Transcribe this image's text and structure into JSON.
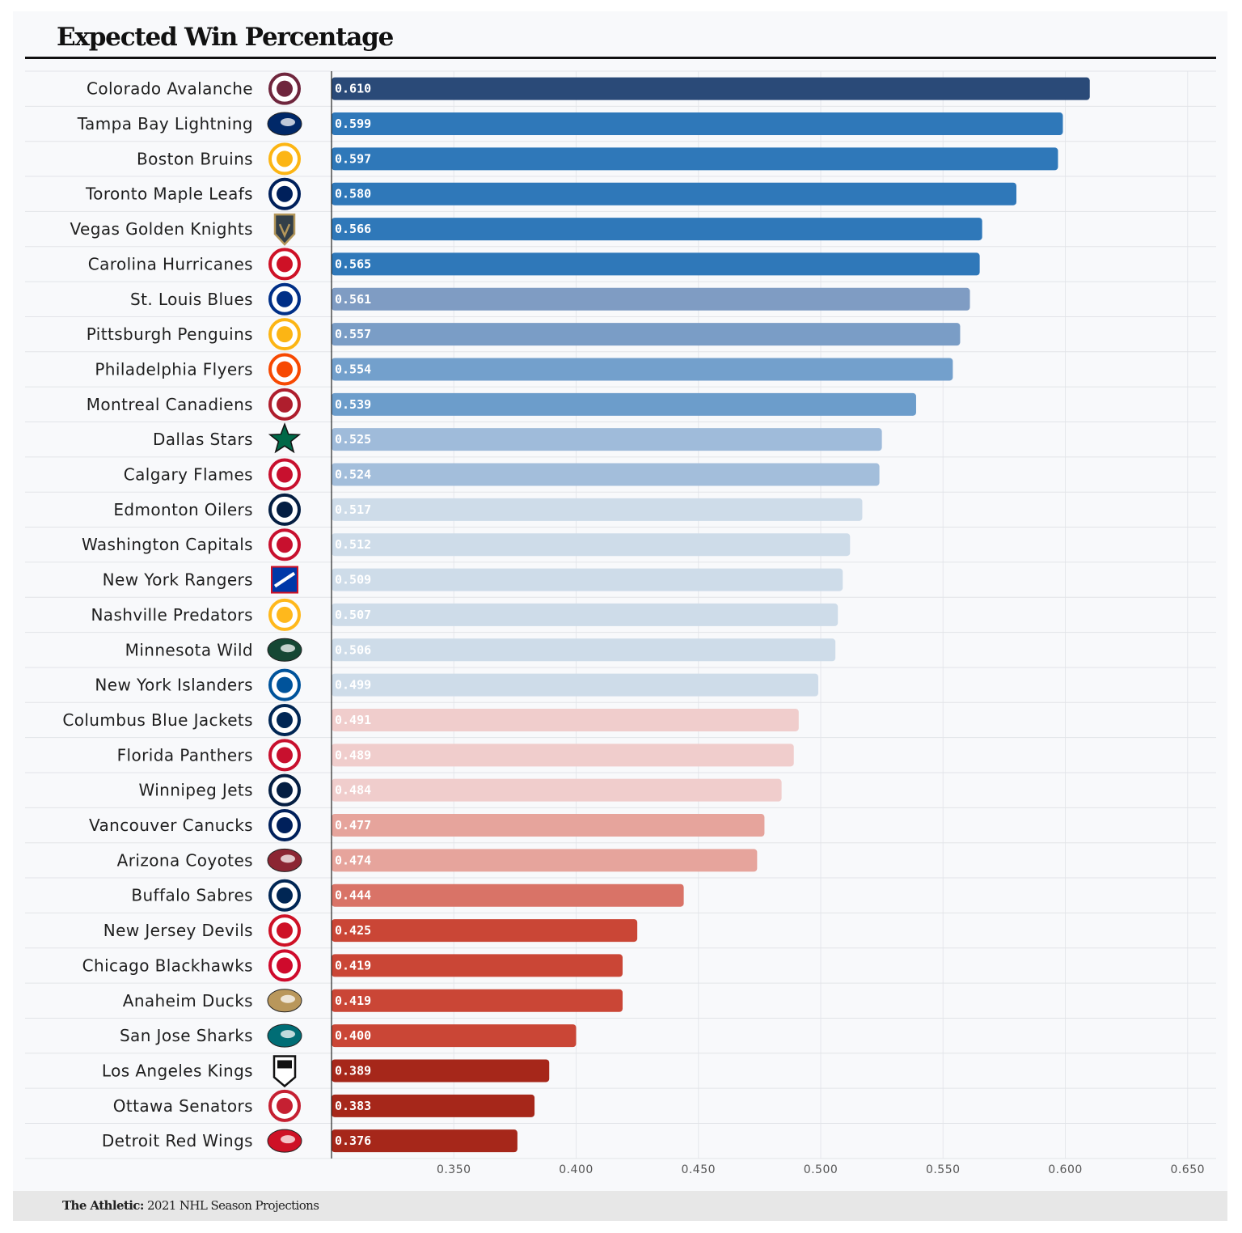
{
  "header": {
    "title": "Expected Win Percentage"
  },
  "footer": {
    "source": "The Athletic:",
    "subtitle": "2021 NHL Season Projections"
  },
  "chart_data": {
    "type": "bar",
    "orientation": "horizontal",
    "title": "Expected Win Percentage",
    "xlim": [
      0.3,
      0.65
    ],
    "xticks": [
      0.35,
      0.4,
      0.45,
      0.5,
      0.55,
      0.6,
      0.65
    ],
    "xtick_labels": [
      "0.350",
      "0.400",
      "0.450",
      "0.500",
      "0.550",
      "0.600",
      "0.650"
    ],
    "grid": "vertical",
    "categories": [
      "Colorado Avalanche",
      "Tampa Bay Lightning",
      "Boston Bruins",
      "Toronto Maple Leafs",
      "Vegas Golden Knights",
      "Carolina Hurricanes",
      "St. Louis Blues",
      "Pittsburgh Penguins",
      "Philadelphia Flyers",
      "Montreal Canadiens",
      "Dallas Stars",
      "Calgary Flames",
      "Edmonton Oilers",
      "Washington Capitals",
      "New York Rangers",
      "Nashville Predators",
      "Minnesota Wild",
      "New York Islanders",
      "Columbus Blue Jackets",
      "Florida Panthers",
      "Winnipeg Jets",
      "Vancouver Canucks",
      "Arizona Coyotes",
      "Buffalo Sabres",
      "New Jersey Devils",
      "Chicago Blackhawks",
      "Anaheim Ducks",
      "San Jose Sharks",
      "Los Angeles Kings",
      "Ottawa Senators",
      "Detroit Red Wings"
    ],
    "values": [
      0.61,
      0.599,
      0.597,
      0.58,
      0.566,
      0.565,
      0.561,
      0.557,
      0.554,
      0.539,
      0.525,
      0.524,
      0.517,
      0.512,
      0.509,
      0.507,
      0.506,
      0.499,
      0.491,
      0.489,
      0.484,
      0.477,
      0.474,
      0.444,
      0.425,
      0.419,
      0.419,
      0.4,
      0.389,
      0.383,
      0.376
    ],
    "value_labels": [
      "0.610",
      "0.599",
      "0.597",
      "0.580",
      "0.566",
      "0.565",
      "0.561",
      "0.557",
      "0.554",
      "0.539",
      "0.525",
      "0.524",
      "0.517",
      "0.512",
      "0.509",
      "0.507",
      "0.506",
      "0.499",
      "0.491",
      "0.489",
      "0.484",
      "0.477",
      "0.474",
      "0.444",
      "0.425",
      "0.419",
      "0.419",
      "0.400",
      "0.389",
      "0.383",
      "0.376"
    ],
    "bar_colors": [
      "#2a4a78",
      "#2f78b9",
      "#2f78b9",
      "#2f78b9",
      "#2f78b9",
      "#2f78b9",
      "#7f9cc3",
      "#7a9dc6",
      "#73a0cc",
      "#6c9dcb",
      "#9fbbda",
      "#a3bedb",
      "#cedce9",
      "#cedce9",
      "#cedce9",
      "#cedce9",
      "#cedce9",
      "#cedce9",
      "#f0cdcc",
      "#f0cdcc",
      "#f0cdcc",
      "#e6a49c",
      "#e6a49c",
      "#d97367",
      "#ca4636",
      "#ca4636",
      "#ca4636",
      "#ca4636",
      "#a6271a",
      "#a6271a",
      "#a6271a"
    ],
    "value_label_colors": [
      "#ffffff",
      "#ffffff",
      "#ffffff",
      "#ffffff",
      "#ffffff",
      "#ffffff",
      "#ffffff",
      "#ffffff",
      "#ffffff",
      "#ffffff",
      "#ffffff",
      "#ffffff",
      "#ffffff",
      "#ffffff",
      "#ffffff",
      "#ffffff",
      "#ffffff",
      "#ffffff",
      "#ffffff",
      "#ffffff",
      "#ffffff",
      "#ffffff",
      "#ffffff",
      "#ffffff",
      "#ffffff",
      "#ffffff",
      "#ffffff",
      "#ffffff",
      "#ffffff",
      "#ffffff",
      "#ffffff"
    ],
    "logo_icons": [
      "avalanche-logo-icon",
      "lightning-logo-icon",
      "bruins-logo-icon",
      "maple-leafs-logo-icon",
      "golden-knights-logo-icon",
      "hurricanes-logo-icon",
      "blues-logo-icon",
      "penguins-logo-icon",
      "flyers-logo-icon",
      "canadiens-logo-icon",
      "stars-logo-icon",
      "flames-logo-icon",
      "oilers-logo-icon",
      "capitals-logo-icon",
      "rangers-logo-icon",
      "predators-logo-icon",
      "wild-logo-icon",
      "islanders-logo-icon",
      "blue-jackets-logo-icon",
      "panthers-logo-icon",
      "jets-logo-icon",
      "canucks-logo-icon",
      "coyotes-logo-icon",
      "sabres-logo-icon",
      "devils-logo-icon",
      "blackhawks-logo-icon",
      "ducks-logo-icon",
      "sharks-logo-icon",
      "kings-logo-icon",
      "senators-logo-icon",
      "red-wings-logo-icon"
    ],
    "logo_colors": [
      "#6f263d",
      "#002868",
      "#fcb514",
      "#00205b",
      "#b4975a",
      "#ce1126",
      "#002f87",
      "#fcb514",
      "#f74902",
      "#af1e2d",
      "#006847",
      "#c8102e",
      "#041e42",
      "#c8102e",
      "#0038a8",
      "#ffb81c",
      "#154734",
      "#00539b",
      "#002654",
      "#c8102e",
      "#041e42",
      "#00205b",
      "#8c2633",
      "#002654",
      "#ce1126",
      "#cf0a2c",
      "#b9975b",
      "#006d75",
      "#111111",
      "#c52032",
      "#ce1126"
    ]
  }
}
